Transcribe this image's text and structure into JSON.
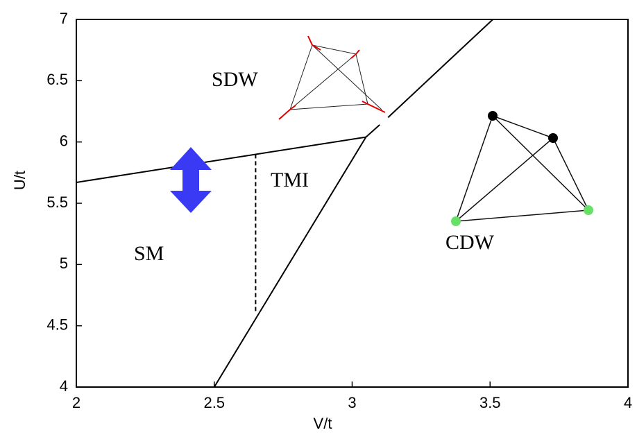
{
  "chart_data": {
    "type": "line",
    "xlabel": "V/t",
    "ylabel": "U/t",
    "xlim": [
      2,
      4
    ],
    "ylim": [
      4,
      7
    ],
    "xticks": [
      2,
      2.5,
      3,
      3.5,
      4
    ],
    "yticks": [
      4,
      4.5,
      5,
      5.5,
      6,
      6.5,
      7
    ],
    "annotations": [
      "SDW",
      "TMI",
      "SM",
      "CDW"
    ],
    "series": [
      {
        "color": "#000000",
        "dashed": false,
        "x": [
          2,
          3.05
        ],
        "values": [
          5.67,
          6.04
        ]
      },
      {
        "color": "#000000",
        "dashed": false,
        "x": [
          2.5,
          3.05,
          3.1,
          3.12,
          3.13,
          3.51
        ],
        "values": [
          4.0,
          6.04,
          6.14,
          null,
          6.2,
          7.0
        ]
      },
      {
        "color": "#000000",
        "dashed": true,
        "x": [
          2.65,
          2.65
        ],
        "values": [
          5.9,
          4.6
        ]
      }
    ]
  }
}
